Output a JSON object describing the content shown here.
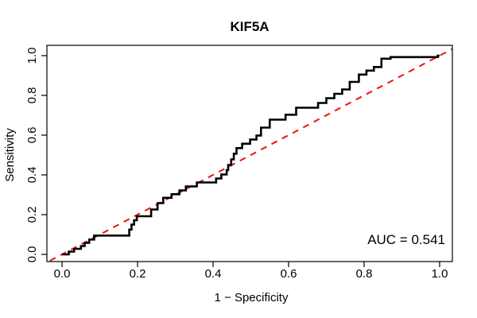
{
  "title": "KIF5A",
  "annotation": {
    "auc_label": "AUC = 0.541"
  },
  "axes": {
    "x_label": "1 − Specificity",
    "y_label": "Sensitivity",
    "x_ticks": [
      "0.0",
      "0.2",
      "0.4",
      "0.6",
      "0.8",
      "1.0"
    ],
    "y_ticks": [
      "0.0",
      "0.2",
      "0.4",
      "0.6",
      "0.8",
      "1.0"
    ]
  },
  "colors": {
    "curve": "#000000",
    "diagonal": "#EE1111",
    "frame": "#000000",
    "background": "#FFFFFF",
    "text": "#000000"
  },
  "chart_data": {
    "type": "line",
    "title": "KIF5A",
    "xlabel": "1 − Specificity",
    "ylabel": "Sensitivity",
    "xlim": [
      0,
      1
    ],
    "ylim": [
      0,
      1
    ],
    "grid": false,
    "legend": "none",
    "auc": 0.541,
    "annotations": [
      {
        "text": "AUC = 0.541",
        "position": "bottom-right"
      }
    ],
    "series": [
      {
        "name": "roc-curve",
        "kind": "step",
        "color": "#000000",
        "line_width": 2.6,
        "dash": "solid",
        "points": [
          [
            0.0,
            0.0
          ],
          [
            0.018,
            0.0
          ],
          [
            0.018,
            0.014
          ],
          [
            0.032,
            0.014
          ],
          [
            0.032,
            0.028
          ],
          [
            0.05,
            0.028
          ],
          [
            0.05,
            0.042
          ],
          [
            0.06,
            0.042
          ],
          [
            0.06,
            0.058
          ],
          [
            0.072,
            0.058
          ],
          [
            0.072,
            0.075
          ],
          [
            0.085,
            0.075
          ],
          [
            0.085,
            0.095
          ],
          [
            0.178,
            0.095
          ],
          [
            0.178,
            0.125
          ],
          [
            0.184,
            0.125
          ],
          [
            0.184,
            0.15
          ],
          [
            0.191,
            0.15
          ],
          [
            0.191,
            0.172
          ],
          [
            0.198,
            0.172
          ],
          [
            0.198,
            0.192
          ],
          [
            0.236,
            0.192
          ],
          [
            0.236,
            0.226
          ],
          [
            0.253,
            0.226
          ],
          [
            0.253,
            0.258
          ],
          [
            0.268,
            0.258
          ],
          [
            0.268,
            0.285
          ],
          [
            0.29,
            0.285
          ],
          [
            0.29,
            0.303
          ],
          [
            0.311,
            0.303
          ],
          [
            0.311,
            0.322
          ],
          [
            0.328,
            0.322
          ],
          [
            0.328,
            0.342
          ],
          [
            0.357,
            0.342
          ],
          [
            0.357,
            0.362
          ],
          [
            0.408,
            0.362
          ],
          [
            0.408,
            0.382
          ],
          [
            0.422,
            0.382
          ],
          [
            0.422,
            0.402
          ],
          [
            0.436,
            0.402
          ],
          [
            0.436,
            0.424
          ],
          [
            0.44,
            0.424
          ],
          [
            0.44,
            0.45
          ],
          [
            0.448,
            0.45
          ],
          [
            0.448,
            0.478
          ],
          [
            0.455,
            0.478
          ],
          [
            0.455,
            0.507
          ],
          [
            0.462,
            0.507
          ],
          [
            0.462,
            0.535
          ],
          [
            0.477,
            0.535
          ],
          [
            0.477,
            0.557
          ],
          [
            0.498,
            0.557
          ],
          [
            0.498,
            0.578
          ],
          [
            0.515,
            0.578
          ],
          [
            0.515,
            0.598
          ],
          [
            0.527,
            0.598
          ],
          [
            0.527,
            0.638
          ],
          [
            0.55,
            0.638
          ],
          [
            0.55,
            0.678
          ],
          [
            0.592,
            0.678
          ],
          [
            0.592,
            0.703
          ],
          [
            0.62,
            0.703
          ],
          [
            0.62,
            0.738
          ],
          [
            0.678,
            0.738
          ],
          [
            0.678,
            0.762
          ],
          [
            0.7,
            0.762
          ],
          [
            0.7,
            0.786
          ],
          [
            0.721,
            0.786
          ],
          [
            0.721,
            0.808
          ],
          [
            0.742,
            0.808
          ],
          [
            0.742,
            0.83
          ],
          [
            0.762,
            0.83
          ],
          [
            0.762,
            0.868
          ],
          [
            0.786,
            0.868
          ],
          [
            0.786,
            0.905
          ],
          [
            0.806,
            0.905
          ],
          [
            0.806,
            0.925
          ],
          [
            0.826,
            0.925
          ],
          [
            0.826,
            0.943
          ],
          [
            0.846,
            0.943
          ],
          [
            0.846,
            0.985
          ],
          [
            0.87,
            0.985
          ],
          [
            0.87,
            0.993
          ],
          [
            0.995,
            0.993
          ],
          [
            0.995,
            1.0
          ],
          [
            1.0,
            1.0
          ]
        ]
      },
      {
        "name": "chance-diagonal",
        "kind": "line",
        "color": "#EE1111",
        "line_width": 2,
        "dash": "dashed",
        "extend_to_frame": true,
        "points": [
          [
            0,
            0
          ],
          [
            1,
            1
          ]
        ]
      }
    ]
  }
}
